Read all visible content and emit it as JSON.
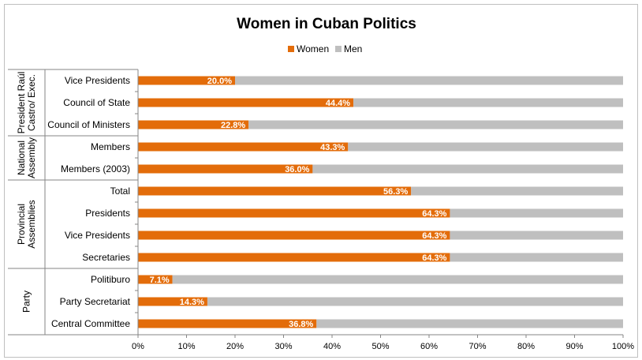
{
  "chart_data": {
    "type": "bar",
    "orientation": "horizontal",
    "stacked": true,
    "title": "Women in Cuban Politics",
    "xlabel": "",
    "ylabel": "",
    "xlim": [
      0,
      100
    ],
    "legend_placement": "top",
    "grid": false,
    "groups": [
      {
        "name": "President Raúl Castro/ Exec.",
        "lines": [
          "President Raúl",
          "Castro/ Exec."
        ],
        "categories": [
          "Vice Presidents",
          "Council of State",
          "Council of Ministers"
        ]
      },
      {
        "name": "National Assembly",
        "lines": [
          "National",
          "Assembly"
        ],
        "categories": [
          "Members",
          "Members (2003)"
        ]
      },
      {
        "name": "Provincial Assemblies",
        "lines": [
          "Provincial",
          "Assemblies"
        ],
        "categories": [
          "Total",
          "Presidents",
          "Vice Presidents",
          "Secretaries"
        ]
      },
      {
        "name": "Party",
        "lines": [
          "Party"
        ],
        "categories": [
          "Politiburo",
          "Party Secretariat",
          "Central Committee"
        ]
      }
    ],
    "categories": [
      "Vice Presidents",
      "Council of State",
      "Council of Ministers",
      "Members",
      "Members (2003)",
      "Total",
      "Presidents",
      "Vice Presidents",
      "Secretaries",
      "Politiburo",
      "Party Secretariat",
      "Central Committee"
    ],
    "series": [
      {
        "name": "Women",
        "color": "#e36c0a",
        "values": [
          20.0,
          44.4,
          22.8,
          43.3,
          36.0,
          56.3,
          64.3,
          64.3,
          64.3,
          7.1,
          14.3,
          36.8
        ]
      },
      {
        "name": "Men",
        "color": "#bfbfbf",
        "values": [
          80.0,
          55.6,
          77.2,
          56.7,
          64.0,
          43.7,
          35.7,
          35.7,
          35.7,
          92.9,
          85.7,
          63.2
        ]
      }
    ],
    "data_labels": [
      "20.0%",
      "44.4%",
      "22.8%",
      "43.3%",
      "36.0%",
      "56.3%",
      "64.3%",
      "64.3%",
      "64.3%",
      "7.1%",
      "14.3%",
      "36.8%"
    ],
    "ticks": [
      "0%",
      "10%",
      "20%",
      "30%",
      "40%",
      "50%",
      "60%",
      "70%",
      "80%",
      "90%",
      "100%"
    ]
  }
}
